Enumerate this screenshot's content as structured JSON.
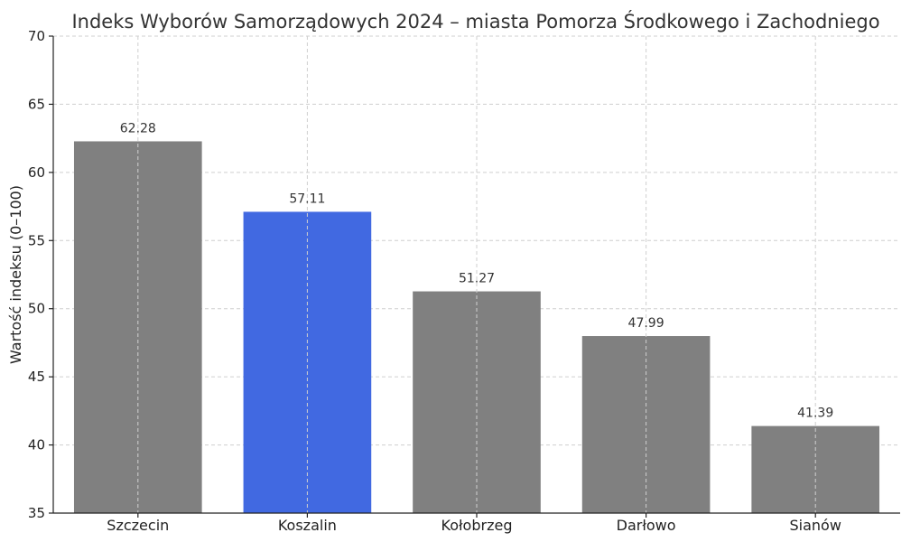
{
  "chart_data": {
    "type": "bar",
    "title": "Indeks Wyborów Samorządowych 2024 – miasta Pomorza Środkowego i Zachodniego",
    "xlabel": "",
    "ylabel": "Wartość indeksu (0–100)",
    "categories": [
      "Szczecin",
      "Koszalin",
      "Kołobrzeg",
      "Darłowo",
      "Sianów"
    ],
    "values": [
      62.28,
      57.11,
      51.27,
      47.99,
      41.39
    ],
    "data_labels": [
      "62.28",
      "57.11",
      "51.27",
      "47.99",
      "41.39"
    ],
    "colors": [
      "#808080",
      "#4169e1",
      "#808080",
      "#808080",
      "#808080"
    ],
    "ylim": [
      35,
      70
    ],
    "yticks": [
      35,
      40,
      45,
      50,
      55,
      60,
      65,
      70
    ],
    "grid": true
  }
}
